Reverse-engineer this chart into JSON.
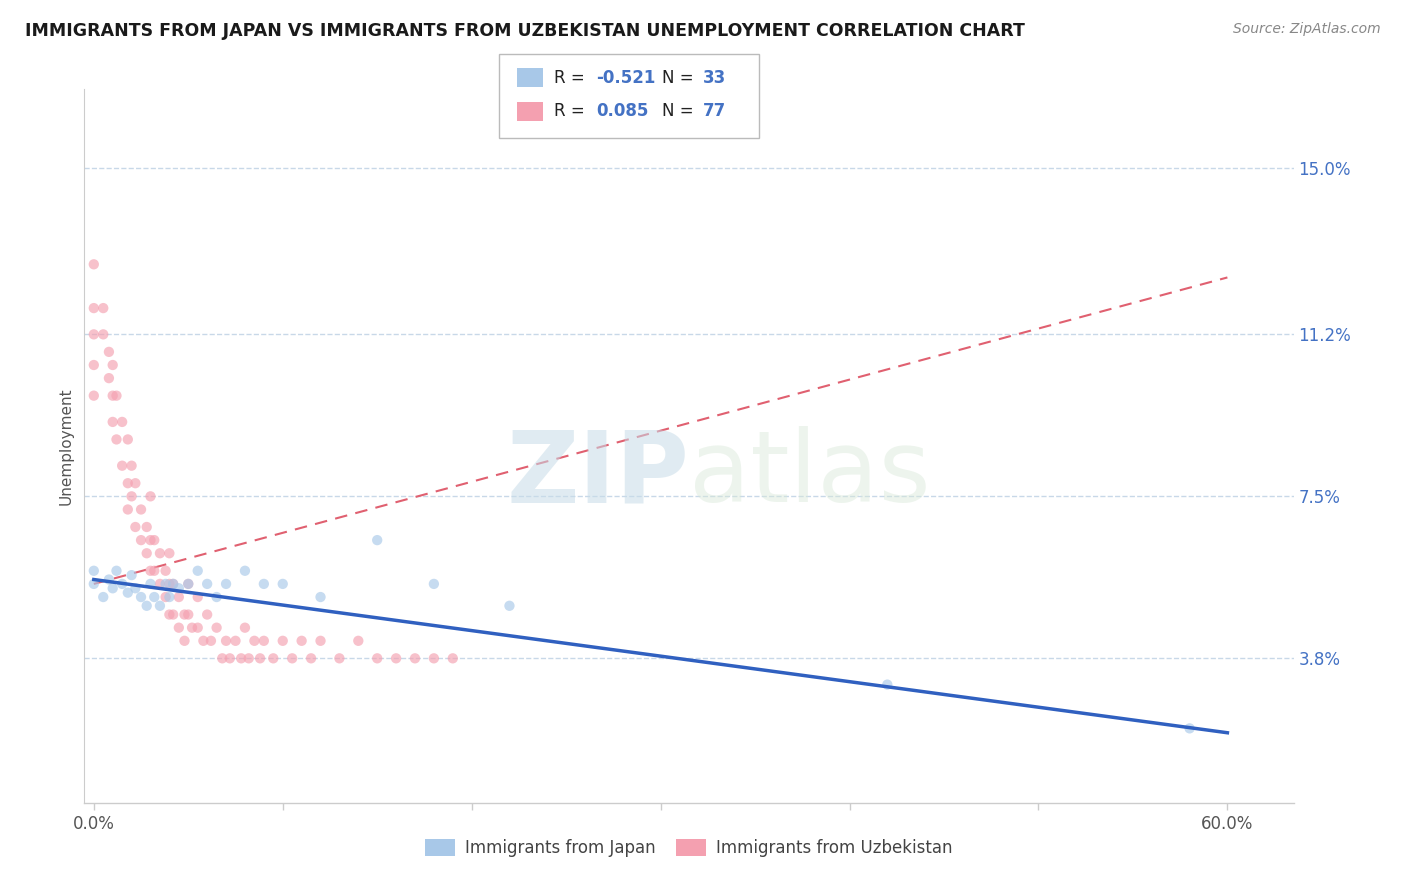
{
  "title": "IMMIGRANTS FROM JAPAN VS IMMIGRANTS FROM UZBEKISTAN UNEMPLOYMENT CORRELATION CHART",
  "source": "Source: ZipAtlas.com",
  "ylabel": "Unemployment",
  "x_tick_positions": [
    0.0,
    0.1,
    0.2,
    0.3,
    0.4,
    0.5,
    0.6
  ],
  "x_tick_labels_ends": [
    "0.0%",
    "60.0%"
  ],
  "y_ticks": [
    0.038,
    0.075,
    0.112,
    0.15
  ],
  "y_tick_labels": [
    "3.8%",
    "7.5%",
    "11.2%",
    "15.0%"
  ],
  "xlim": [
    -0.005,
    0.635
  ],
  "ylim": [
    0.005,
    0.168
  ],
  "series_japan": {
    "name": "Immigrants from Japan",
    "color": "#a8c8e8",
    "R": -0.521,
    "N": 33,
    "x": [
      0.0,
      0.0,
      0.005,
      0.008,
      0.01,
      0.012,
      0.015,
      0.018,
      0.02,
      0.022,
      0.025,
      0.028,
      0.03,
      0.032,
      0.035,
      0.038,
      0.04,
      0.042,
      0.045,
      0.05,
      0.055,
      0.06,
      0.065,
      0.07,
      0.08,
      0.09,
      0.1,
      0.12,
      0.15,
      0.18,
      0.22,
      0.42,
      0.58
    ],
    "y": [
      0.055,
      0.058,
      0.052,
      0.056,
      0.054,
      0.058,
      0.055,
      0.053,
      0.057,
      0.054,
      0.052,
      0.05,
      0.055,
      0.052,
      0.05,
      0.055,
      0.052,
      0.055,
      0.054,
      0.055,
      0.058,
      0.055,
      0.052,
      0.055,
      0.058,
      0.055,
      0.055,
      0.052,
      0.065,
      0.055,
      0.05,
      0.032,
      0.022
    ]
  },
  "series_uzbekistan": {
    "name": "Immigrants from Uzbekistan",
    "color": "#f4a0b0",
    "R": 0.085,
    "N": 77,
    "x": [
      0.0,
      0.0,
      0.0,
      0.0,
      0.0,
      0.005,
      0.005,
      0.008,
      0.008,
      0.01,
      0.01,
      0.01,
      0.012,
      0.012,
      0.015,
      0.015,
      0.018,
      0.018,
      0.018,
      0.02,
      0.02,
      0.022,
      0.022,
      0.025,
      0.025,
      0.028,
      0.028,
      0.03,
      0.03,
      0.03,
      0.032,
      0.032,
      0.035,
      0.035,
      0.038,
      0.038,
      0.04,
      0.04,
      0.04,
      0.042,
      0.042,
      0.045,
      0.045,
      0.048,
      0.048,
      0.05,
      0.05,
      0.052,
      0.055,
      0.055,
      0.058,
      0.06,
      0.062,
      0.065,
      0.068,
      0.07,
      0.072,
      0.075,
      0.078,
      0.08,
      0.082,
      0.085,
      0.088,
      0.09,
      0.095,
      0.1,
      0.105,
      0.11,
      0.115,
      0.12,
      0.13,
      0.14,
      0.15,
      0.16,
      0.17,
      0.18,
      0.19
    ],
    "y": [
      0.128,
      0.118,
      0.112,
      0.105,
      0.098,
      0.118,
      0.112,
      0.108,
      0.102,
      0.105,
      0.098,
      0.092,
      0.098,
      0.088,
      0.092,
      0.082,
      0.088,
      0.078,
      0.072,
      0.082,
      0.075,
      0.078,
      0.068,
      0.072,
      0.065,
      0.068,
      0.062,
      0.075,
      0.065,
      0.058,
      0.065,
      0.058,
      0.062,
      0.055,
      0.058,
      0.052,
      0.062,
      0.055,
      0.048,
      0.055,
      0.048,
      0.052,
      0.045,
      0.048,
      0.042,
      0.055,
      0.048,
      0.045,
      0.052,
      0.045,
      0.042,
      0.048,
      0.042,
      0.045,
      0.038,
      0.042,
      0.038,
      0.042,
      0.038,
      0.045,
      0.038,
      0.042,
      0.038,
      0.042,
      0.038,
      0.042,
      0.038,
      0.042,
      0.038,
      0.042,
      0.038,
      0.042,
      0.038,
      0.038,
      0.038,
      0.038,
      0.038
    ]
  },
  "trend_japan": {
    "color": "#3060c0",
    "x_start": 0.0,
    "x_end": 0.6,
    "y_start": 0.056,
    "y_end": 0.021
  },
  "trend_uzbekistan": {
    "color": "#e06070",
    "linestyle": "dashed",
    "x_start": 0.0,
    "x_end": 0.6,
    "y_start": 0.055,
    "y_end": 0.125
  },
  "watermark_zip": "ZIP",
  "watermark_atlas": "atlas",
  "background_color": "#ffffff",
  "grid_color": "#c8d8e8",
  "dot_size": 55,
  "dot_alpha": 0.65,
  "legend_jp_r": "-0.521",
  "legend_jp_n": "33",
  "legend_uz_r": "0.085",
  "legend_uz_n": "77"
}
